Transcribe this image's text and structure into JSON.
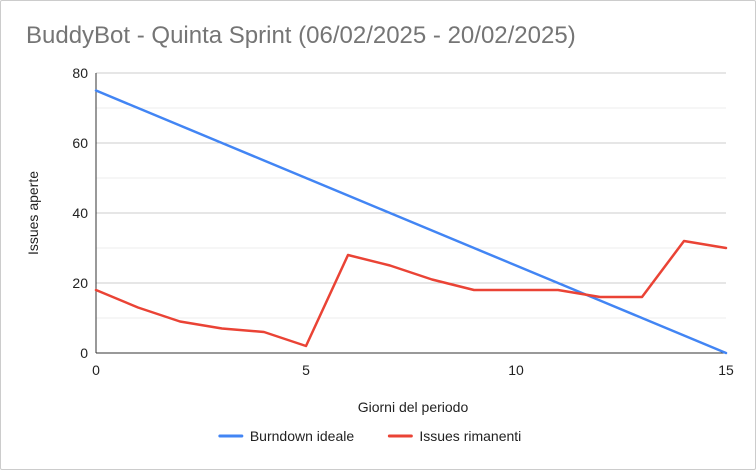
{
  "chart_data": {
    "type": "line",
    "title": "BuddyBot - Quinta Sprint (06/02/2025 - 20/02/2025)",
    "xlabel": "Giorni del periodo",
    "ylabel": "Issues aperte",
    "xlim": [
      0,
      15
    ],
    "ylim": [
      0,
      80
    ],
    "x_ticks": [
      "0",
      "5",
      "10",
      "15"
    ],
    "y_ticks": [
      "0",
      "20",
      "40",
      "60",
      "80"
    ],
    "grid": true,
    "legend_position": "bottom",
    "x": [
      0,
      1,
      2,
      3,
      4,
      5,
      6,
      7,
      8,
      9,
      10,
      11,
      12,
      13,
      14,
      15
    ],
    "series": [
      {
        "name": "Burndown ideale",
        "color": "#4285f4",
        "values": [
          75,
          70,
          65,
          60,
          55,
          50,
          45,
          40,
          35,
          30,
          25,
          20,
          15,
          10,
          5,
          0
        ]
      },
      {
        "name": "Issues rimanenti",
        "color": "#ea4335",
        "values": [
          18,
          13,
          9,
          7,
          6,
          2,
          28,
          25,
          21,
          18,
          18,
          18,
          16,
          16,
          32,
          30
        ]
      }
    ]
  }
}
